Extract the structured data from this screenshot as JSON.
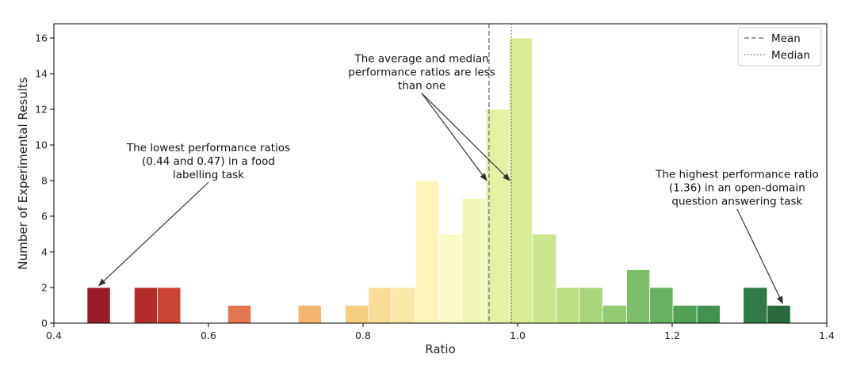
{
  "chart_data": {
    "type": "bar",
    "title": "",
    "xlabel": "Ratio",
    "ylabel": "Number of Experimental Results",
    "xlim": [
      0.4,
      1.4
    ],
    "ylim": [
      0,
      16.8
    ],
    "xticks": [
      "0.4",
      "0.6",
      "0.8",
      "1.0",
      "1.2",
      "1.4"
    ],
    "yticks": [
      "0",
      "2",
      "4",
      "6",
      "8",
      "10",
      "12",
      "14",
      "16"
    ],
    "bins": [
      {
        "start": 0.443,
        "end": 0.473,
        "count": 2,
        "color": "#9a1b2b"
      },
      {
        "start": 0.504,
        "end": 0.534,
        "count": 2,
        "color": "#b52b2b"
      },
      {
        "start": 0.534,
        "end": 0.564,
        "count": 2,
        "color": "#c94232"
      },
      {
        "start": 0.625,
        "end": 0.655,
        "count": 1,
        "color": "#e27650"
      },
      {
        "start": 0.716,
        "end": 0.746,
        "count": 1,
        "color": "#f2b46f"
      },
      {
        "start": 0.777,
        "end": 0.807,
        "count": 1,
        "color": "#f7cc83"
      },
      {
        "start": 0.807,
        "end": 0.837,
        "count": 2,
        "color": "#f9dd96"
      },
      {
        "start": 0.837,
        "end": 0.868,
        "count": 2,
        "color": "#fbe7a5"
      },
      {
        "start": 0.868,
        "end": 0.898,
        "count": 8,
        "color": "#fcf4b8"
      },
      {
        "start": 0.898,
        "end": 0.928,
        "count": 5,
        "color": "#fcfbc6"
      },
      {
        "start": 0.928,
        "end": 0.959,
        "count": 7,
        "color": "#f0f7b9"
      },
      {
        "start": 0.959,
        "end": 0.989,
        "count": 12,
        "color": "#e3f1a6"
      },
      {
        "start": 0.989,
        "end": 1.019,
        "count": 16,
        "color": "#d8ec96"
      },
      {
        "start": 1.019,
        "end": 1.05,
        "count": 5,
        "color": "#cbe68c"
      },
      {
        "start": 1.05,
        "end": 1.08,
        "count": 2,
        "color": "#bde084"
      },
      {
        "start": 1.08,
        "end": 1.11,
        "count": 2,
        "color": "#a9d57a"
      },
      {
        "start": 1.11,
        "end": 1.141,
        "count": 1,
        "color": "#92ca70"
      },
      {
        "start": 1.141,
        "end": 1.171,
        "count": 3,
        "color": "#7cbd68"
      },
      {
        "start": 1.171,
        "end": 1.201,
        "count": 2,
        "color": "#66b05f"
      },
      {
        "start": 1.201,
        "end": 1.232,
        "count": 1,
        "color": "#51a257"
      },
      {
        "start": 1.232,
        "end": 1.262,
        "count": 1,
        "color": "#41934f"
      },
      {
        "start": 1.292,
        "end": 1.323,
        "count": 2,
        "color": "#2f7a45"
      },
      {
        "start": 1.323,
        "end": 1.353,
        "count": 1,
        "color": "#286a3d"
      }
    ],
    "mean": 0.963,
    "median": 0.992,
    "legend": {
      "position": "top-right",
      "entries": [
        {
          "label": "Mean",
          "style": "dashed",
          "color": "#808080"
        },
        {
          "label": "Median",
          "style": "dotted",
          "color": "#808080"
        }
      ]
    },
    "annotations": [
      {
        "id": "lowest",
        "lines": [
          "The lowest performance ratios",
          "(0.44 and 0.47) in a food",
          "labelling task"
        ],
        "text_at": [
          0.6,
          9.1
        ],
        "arrows_to": [
          [
            0.458,
            2.1
          ]
        ]
      },
      {
        "id": "average",
        "lines": [
          "The average and median",
          "performance ratios are less",
          "than one"
        ],
        "text_at": [
          0.876,
          14.1
        ],
        "arrows_to": [
          [
            0.96,
            8.0
          ],
          [
            0.99,
            8.0
          ]
        ]
      },
      {
        "id": "highest",
        "lines": [
          "The highest performance ratio",
          "(1.36) in an open-domain",
          "question answering task"
        ],
        "text_at": [
          1.284,
          7.6
        ],
        "arrows_to": [
          [
            1.343,
            1.1
          ]
        ]
      }
    ],
    "grid": false
  }
}
